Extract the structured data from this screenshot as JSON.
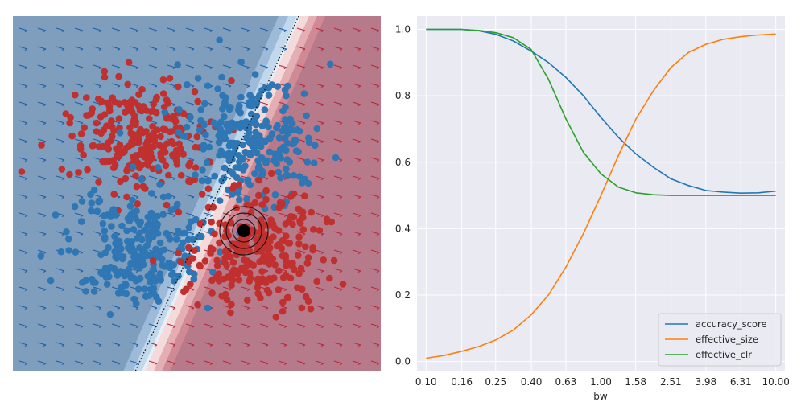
{
  "colors": {
    "class_blue": "#2e77b4",
    "class_red": "#c0302e",
    "bg_blue": "#7f9dbd",
    "bg_red": "#b77a8a",
    "grid_bg": "#eaeaf2",
    "series": [
      "#1f77b4",
      "#ff7f0e",
      "#2ca02c"
    ]
  },
  "chart_data": [
    {
      "type": "scatter",
      "description_keys": [
        "decision_boundary",
        "clusters",
        "query_point"
      ],
      "xlabel": "",
      "ylabel": "",
      "clusters": [
        {
          "class": "red",
          "center": [
            -1.0,
            1.0
          ],
          "count": 250
        },
        {
          "class": "blue",
          "center": [
            1.0,
            1.0
          ],
          "count": 250
        },
        {
          "class": "blue",
          "center": [
            -1.0,
            -1.0
          ],
          "count": 250
        },
        {
          "class": "red",
          "center": [
            1.0,
            -1.0
          ],
          "count": 250
        }
      ],
      "xlim": [
        -3.2,
        3.2
      ],
      "ylim": [
        -3.2,
        3.2
      ],
      "query_point": [
        1.17,
        -0.58
      ],
      "grid": false
    },
    {
      "type": "line",
      "xlabel": "bw",
      "ylabel": "",
      "x_scale": "log",
      "x": [
        0.1,
        0.126,
        0.158,
        0.2,
        0.251,
        0.316,
        0.398,
        0.501,
        0.631,
        0.794,
        1.0,
        1.259,
        1.585,
        1.995,
        2.512,
        3.162,
        3.981,
        5.012,
        6.31,
        7.943,
        10.0
      ],
      "x_ticks": [
        "0.10",
        "0.16",
        "0.25",
        "0.40",
        "0.63",
        "1.00",
        "1.58",
        "2.51",
        "3.98",
        "6.31",
        "10.00"
      ],
      "y_ticks": [
        "0.0",
        "0.2",
        "0.4",
        "0.6",
        "0.8",
        "1.0"
      ],
      "ylim": [
        -0.03,
        1.04
      ],
      "series": [
        {
          "name": "accuracy_score",
          "values": [
            1.0,
            1.0,
            1.0,
            0.996,
            0.985,
            0.965,
            0.935,
            0.9,
            0.855,
            0.8,
            0.735,
            0.675,
            0.625,
            0.585,
            0.55,
            0.53,
            0.515,
            0.51,
            0.507,
            0.508,
            0.513
          ]
        },
        {
          "name": "effective_size",
          "values": [
            0.01,
            0.018,
            0.03,
            0.045,
            0.065,
            0.095,
            0.14,
            0.2,
            0.285,
            0.385,
            0.5,
            0.62,
            0.73,
            0.815,
            0.885,
            0.93,
            0.955,
            0.97,
            0.978,
            0.983,
            0.986
          ]
        },
        {
          "name": "effective_clr",
          "values": [
            1.0,
            1.0,
            1.0,
            0.997,
            0.99,
            0.975,
            0.94,
            0.85,
            0.73,
            0.63,
            0.565,
            0.525,
            0.508,
            0.502,
            0.5,
            0.5,
            0.5,
            0.5,
            0.5,
            0.5,
            0.5
          ]
        }
      ],
      "legend": "lower-right",
      "grid": true
    }
  ]
}
